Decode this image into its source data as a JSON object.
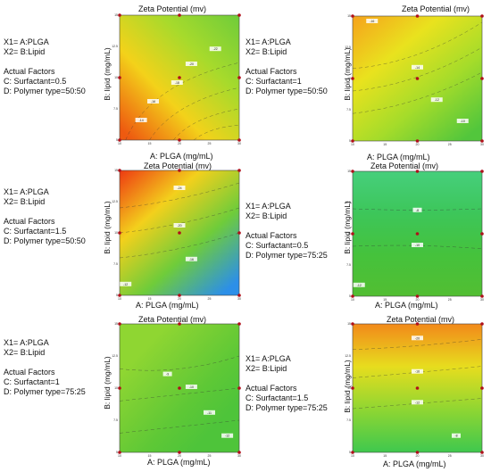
{
  "chart_data": [
    {
      "type": "contour",
      "title": "Zeta Potential (mv)",
      "xlabel": "A: PLGA (mg/mL)",
      "ylabel": "B: lipid (mg/mL)",
      "factors": {
        "x1": "X1= A:PLGA",
        "x2": "X2= B:Lipid",
        "header": "Actual Factors",
        "c": "C: Surfactant=0.5",
        "d": "D: Polymer type=50:50"
      },
      "x_ticks": [
        "10",
        "15",
        "20",
        "25",
        "30"
      ],
      "y_ticks": [
        "5",
        "7.5",
        "10",
        "12.5",
        "15"
      ],
      "colors": [
        "#ee5a10",
        "#f3d21a",
        "#a6da2c",
        "#6fcc3a"
      ],
      "gradient": [
        0.05,
        0.95,
        1.0,
        0.0
      ],
      "contour_labels": [
        "-22",
        "-20",
        "-18",
        "-16",
        "-14"
      ]
    },
    {
      "type": "contour",
      "title": "Zeta Potential (mv)",
      "xlabel": "A: PLGA (mg/mL)",
      "ylabel": "B: lipid (mg/mL)",
      "factors": {
        "x1": "X1= A:PLGA",
        "x2": "X2= B:Lipid",
        "header": "Actual Factors",
        "c": "C: Surfactant=1",
        "d": "D: Polymer type=50:50"
      },
      "x_ticks": [
        "10",
        "15",
        "20",
        "25",
        "30"
      ],
      "y_ticks": [
        "5",
        "7.5",
        "10",
        "12.5",
        "15"
      ],
      "colors": [
        "#f6a21c",
        "#e9e21e",
        "#a5dc2a",
        "#52c63c"
      ],
      "gradient": [
        0.0,
        0.0,
        0.85,
        1.0
      ],
      "contour_labels": [
        "-16",
        "-14",
        "-12",
        "-10"
      ]
    },
    {
      "type": "contour",
      "title": "Zeta Potential (mv)",
      "xlabel": "A: PLGA (mg/mL)",
      "ylabel": "B: lipid (mg/mL)",
      "factors": {
        "x1": "X1= A:PLGA",
        "x2": "X2= B:Lipid",
        "header": "Actual Factors",
        "c": "C: Surfactant=1.5",
        "d": "D: Polymer type=50:50"
      },
      "x_ticks": [
        "10",
        "15",
        "20",
        "25",
        "30"
      ],
      "y_ticks": [
        "5",
        "7.5",
        "10",
        "12.5",
        "15"
      ],
      "colors": [
        "#ee3a12",
        "#f3d01c",
        "#6fcc3a",
        "#2c8fe8"
      ],
      "gradient": [
        0.0,
        0.0,
        0.85,
        1.0
      ],
      "contour_labels": [
        "-24",
        "-20",
        "-16",
        "-12"
      ]
    },
    {
      "type": "contour",
      "title": "Zeta Potential (mv)",
      "xlabel": "A: PLGA (mg/mL)",
      "ylabel": "B: lipid (mg/mL)",
      "factors": {
        "x1": "X1= A:PLGA",
        "x2": "X2= B:Lipid",
        "header": "Actual Factors",
        "c": "C: Surfactant=0.5",
        "d": "D: Polymer type=75:25"
      },
      "x_ticks": [
        "10",
        "15",
        "20",
        "25",
        "30"
      ],
      "y_ticks": [
        "5",
        "7.5",
        "10",
        "12.5",
        "15"
      ],
      "colors": [
        "#46cf7c",
        "#3dc65a",
        "#45c23c",
        "#52be32"
      ],
      "gradient": [
        0.0,
        0.0,
        0.0,
        1.0
      ],
      "contour_labels": [
        "-8",
        "-10",
        "-12"
      ]
    },
    {
      "type": "contour",
      "title": "Zeta Potential (mv)",
      "xlabel": "A: PLGA (mg/mL)",
      "ylabel": "B: lipid (mg/mL)",
      "factors": {
        "x1": "X1= A:PLGA",
        "x2": "X2= B:Lipid",
        "header": "Actual Factors",
        "c": "C: Surfactant=1",
        "d": "D: Polymer type=75:25"
      },
      "x_ticks": [
        "10",
        "15",
        "20",
        "25",
        "30"
      ],
      "y_ticks": [
        "5",
        "7.5",
        "10",
        "12.5",
        "15"
      ],
      "colors": [
        "#8fd632",
        "#77ce34",
        "#5ec836",
        "#4ec43a"
      ],
      "gradient": [
        0.2,
        0.2,
        0.8,
        0.8
      ],
      "contour_labels": [
        "-9",
        "-10",
        "-11",
        "-12"
      ]
    },
    {
      "type": "contour",
      "title": "Zeta Potential (mv)",
      "xlabel": "A: PLGA (mg/mL)",
      "ylabel": "B: lipid (mg/mL)",
      "factors": {
        "x1": "X1= A:PLGA",
        "x2": "X2= B:Lipid",
        "header": "Actual Factors",
        "c": "C: Surfactant=1.5",
        "d": "D: Polymer type=75:25"
      },
      "x_ticks": [
        "10",
        "15",
        "20",
        "25",
        "30"
      ],
      "y_ticks": [
        "5",
        "7.5",
        "10",
        "12.5",
        "15"
      ],
      "colors": [
        "#f2891a",
        "#e7dd1e",
        "#8fd632",
        "#3fc84e"
      ],
      "gradient": [
        0.0,
        0.0,
        0.0,
        1.0
      ],
      "contour_labels": [
        "-20",
        "-16",
        "-12",
        "-8"
      ]
    }
  ]
}
